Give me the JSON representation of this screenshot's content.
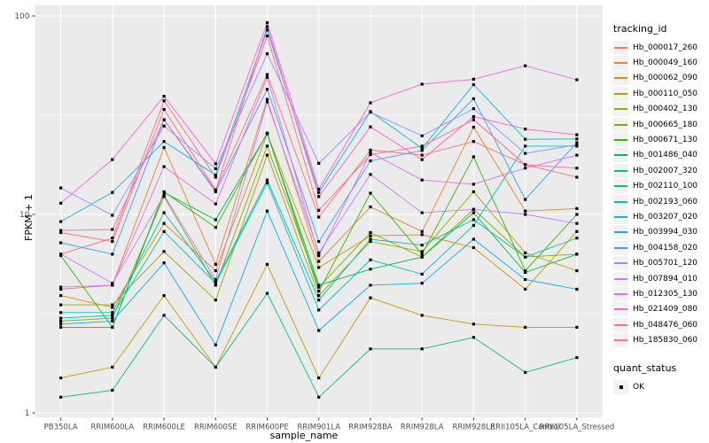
{
  "figure": {
    "x_axis_title": "sample_name",
    "y_axis_title": "FPKM + 1",
    "legend_title": "tracking_id",
    "legend2_title": "quant_status",
    "legend2_items": [
      {
        "label": "OK",
        "marker": "black-square"
      }
    ],
    "panel_bg": "#EBEBEB",
    "grid_color": "#FFFFFF",
    "tick_color": "#333333",
    "tick_label_color": "#4D4D4D",
    "marker_color": "#000000"
  },
  "chart_data": {
    "type": "line",
    "xlabel": "sample_name",
    "ylabel": "FPKM + 1",
    "y_scale": "log10",
    "ylim": [
      1,
      113
    ],
    "y_ticks": [
      "1",
      "10",
      "100"
    ],
    "y_minor_ticks": [
      3.162,
      31.62
    ],
    "grid": "white major and minor on gray panel",
    "legend_position": "right",
    "marker": "small black square (quant_status OK) at every point",
    "categories": [
      "PB350LA",
      "RRIM600LA",
      "RRIM600LE",
      "RRIM600SE",
      "RRIM600PE",
      "RRIM901LA",
      "RRIM928BA",
      "RRIM928LA",
      "RRIM928LE",
      "RRII105LA_Control",
      "RRII105LA_Stressed"
    ],
    "series": [
      {
        "name": "Hb_000017_260",
        "color": "#F8766D",
        "values": [
          8.1,
          7.3,
          33.8,
          13.3,
          50.7,
          9.7,
          21.1,
          19.9,
          23.3,
          17.8,
          15.4
        ]
      },
      {
        "name": "Hb_000049_160",
        "color": "#EA8331",
        "values": [
          4.2,
          4.4,
          21.7,
          5.6,
          38.0,
          5.8,
          10.9,
          8.2,
          27.5,
          10.4,
          10.7
        ]
      },
      {
        "name": "Hb_000062_090",
        "color": "#D89000",
        "values": [
          3.9,
          3.4,
          9.0,
          5.2,
          25.5,
          5.4,
          7.8,
          7.9,
          6.8,
          4.2,
          8.2
        ]
      },
      {
        "name": "Hb_000110_050",
        "color": "#C09B00",
        "values": [
          1.5,
          1.7,
          3.9,
          1.7,
          5.6,
          1.5,
          3.8,
          3.1,
          2.8,
          2.7,
          2.7
        ]
      },
      {
        "name": "Hb_000402_130",
        "color": "#A3A500",
        "values": [
          3.5,
          3.5,
          6.5,
          3.7,
          19.9,
          3.9,
          7.3,
          6.5,
          13.0,
          6.4,
          5.2
        ]
      },
      {
        "name": "Hb_000665_180",
        "color": "#7CAE00",
        "values": [
          2.9,
          3.0,
          12.3,
          4.4,
          22.1,
          4.3,
          8.1,
          6.1,
          10.6,
          6.1,
          6.3
        ]
      },
      {
        "name": "Hb_000671_130",
        "color": "#39B600",
        "values": [
          6.2,
          2.7,
          13.0,
          8.6,
          25.7,
          4.1,
          12.8,
          6.3,
          19.5,
          5.2,
          10.0
        ]
      },
      {
        "name": "Hb_001486_040",
        "color": "#00BB4E",
        "values": [
          2.7,
          2.7,
          12.9,
          9.4,
          25.5,
          4.4,
          5.3,
          6.1,
          10.2,
          5.1,
          6.3
        ]
      },
      {
        "name": "Hb_002007_320",
        "color": "#00BF7D",
        "values": [
          1.2,
          1.3,
          3.1,
          1.7,
          4.0,
          1.2,
          2.1,
          2.1,
          2.4,
          1.6,
          1.9
        ]
      },
      {
        "name": "Hb_002110_100",
        "color": "#00C1A7",
        "values": [
          3.2,
          3.2,
          10.2,
          4.6,
          14.9,
          3.7,
          7.5,
          7.0,
          9.4,
          6.1,
          7.6
        ]
      },
      {
        "name": "Hb_002193_060",
        "color": "#00BFC4",
        "values": [
          3.0,
          3.1,
          8.2,
          4.5,
          14.4,
          3.3,
          5.9,
          5.0,
          8.8,
          22.1,
          22.1
        ]
      },
      {
        "name": "Hb_003207_020",
        "color": "#00BAE0",
        "values": [
          9.2,
          12.9,
          23.3,
          15.8,
          84.9,
          12.9,
          33.0,
          21.5,
          45.1,
          23.9,
          24.0
        ]
      },
      {
        "name": "Hb_003994_030",
        "color": "#00B0F6",
        "values": [
          2.8,
          2.9,
          5.7,
          2.2,
          10.4,
          2.6,
          4.4,
          4.5,
          7.5,
          4.7,
          4.2
        ]
      },
      {
        "name": "Hb_004158_020",
        "color": "#35A2FF",
        "values": [
          7.2,
          6.3,
          30.0,
          13.0,
          42.7,
          7.3,
          18.6,
          21.0,
          38.3,
          11.9,
          23.0
        ]
      },
      {
        "name": "Hb_005701_120",
        "color": "#9590FF",
        "values": [
          13.6,
          9.9,
          27.9,
          17.0,
          64.5,
          18.1,
          32.7,
          24.9,
          34.1,
          20.3,
          22.4
        ]
      },
      {
        "name": "Hb_007894_010",
        "color": "#C77CFF",
        "values": [
          6.3,
          4.5,
          12.5,
          4.7,
          36.9,
          6.4,
          15.9,
          10.2,
          10.6,
          10.0,
          9.0
        ]
      },
      {
        "name": "Hb_012305_130",
        "color": "#E76BF3",
        "values": [
          4.3,
          4.4,
          17.4,
          11.3,
          49.0,
          6.2,
          20.5,
          14.9,
          14.2,
          17.1,
          19.9
        ]
      },
      {
        "name": "Hb_021409_080",
        "color": "#FA62DB",
        "values": [
          11.4,
          18.9,
          39.4,
          18.0,
          92.5,
          13.4,
          36.5,
          45.3,
          48.0,
          56.1,
          47.7
        ]
      },
      {
        "name": "Hb_048476_060",
        "color": "#FF62BC",
        "values": [
          8.3,
          8.4,
          30.0,
          13.2,
          88.4,
          12.3,
          27.6,
          18.9,
          31.1,
          26.9,
          25.2
        ]
      },
      {
        "name": "Hb_185830_060",
        "color": "#FF6A98",
        "values": [
          6.3,
          7.6,
          37.4,
          15.4,
          79.3,
          10.5,
          20.0,
          22.1,
          30.0,
          17.8,
          17.1
        ]
      }
    ]
  }
}
